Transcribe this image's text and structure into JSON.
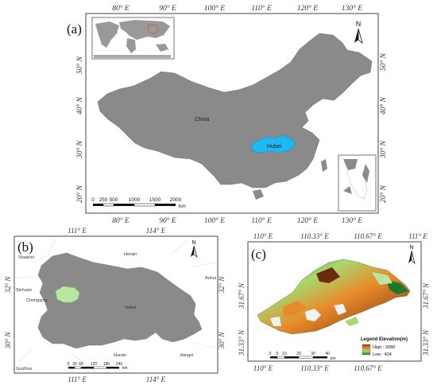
{
  "panel_a": {
    "label": "(a)",
    "top_ticks": [
      "80° E",
      "90° E",
      "100° E",
      "110° E",
      "120° E",
      "130° E"
    ],
    "bottom_ticks": [
      "80° E",
      "90° E",
      "100° E",
      "110° E",
      "120° E",
      "130° E"
    ],
    "left_ticks": [
      "50° N",
      "40° N",
      "30° N",
      "20° N"
    ],
    "right_ticks": [
      "50° N",
      "40° N",
      "30° N",
      "20° N"
    ],
    "country_label": "China",
    "province_label": "Hubei",
    "north": "N",
    "scale_values": [
      "0",
      "250",
      "500",
      "1000",
      "1500",
      "2000"
    ],
    "scale_unit": "km"
  },
  "panel_b": {
    "label": "(b)",
    "top_ticks": [
      "111° E",
      "114° E"
    ],
    "bottom_ticks": [
      "111° E",
      "114° E"
    ],
    "left_ticks": [
      "32° N",
      "30° N"
    ],
    "right_ticks": [
      "32° N",
      "30° N"
    ],
    "places": [
      "Shaanxi",
      "Henan",
      "Anhui",
      "Sichuan",
      "Chongqing",
      "Hubei",
      "Hunan",
      "Jiangxi",
      "Guizhou"
    ],
    "north": "N",
    "scale_values": [
      "0",
      "30",
      "60",
      "120",
      "180",
      "240"
    ],
    "scale_unit": "km"
  },
  "panel_c": {
    "label": "(c)",
    "top_ticks": [
      "110° E",
      "110.33° E",
      "110.67° E",
      "111° E"
    ],
    "bottom_ticks": [
      "110° E",
      "110.33° E",
      "110.67° E"
    ],
    "left_ticks": [
      "31.67° N",
      "31.33° N"
    ],
    "right_ticks": [
      "31.67° N",
      "31.33° N"
    ],
    "north": "N",
    "scale_values": [
      "0",
      "5",
      "10",
      "20",
      "30",
      "40"
    ],
    "scale_unit": "km",
    "legend": {
      "title": "Legend Elevation(m)",
      "high": "High : 3088",
      "low": "Low : 424",
      "colors": [
        "#1a7a2a",
        "#a8d86e",
        "#f2e36b",
        "#e88a2a",
        "#8b3a1a",
        "#ffffff"
      ]
    }
  },
  "colors": {
    "land": "#8a8a8a",
    "hubei": "#1fb8f0",
    "study_area": "#b6e8a0",
    "frame": "#444444"
  }
}
